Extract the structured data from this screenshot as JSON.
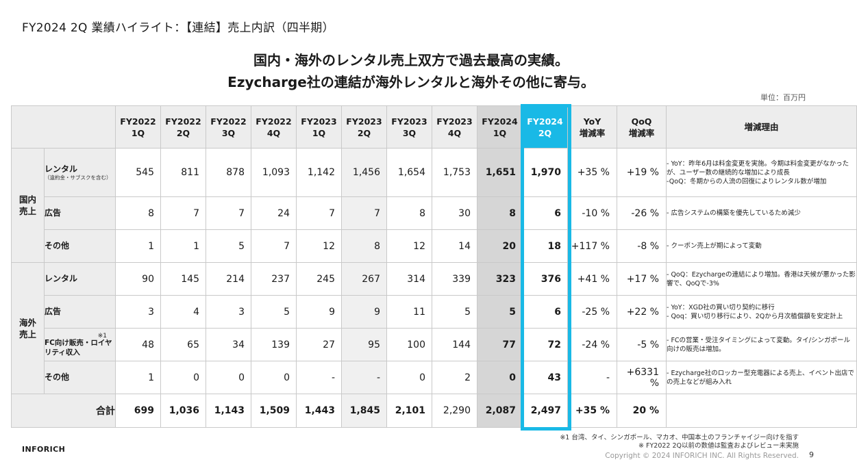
{
  "slide": {
    "title": "FY2024 2Q 業績ハイライト：【連結】売上内訳（四半期）",
    "headline_line1": "国内・海外のレンタル売上双方で過去最高の実績。",
    "headline_line2": "Ezycharge社の連結が海外レンタルと海外その他に寄与。",
    "unit": "単位：百万円"
  },
  "table": {
    "columns": [
      {
        "line1": "FY2022",
        "line2": "1Q"
      },
      {
        "line1": "FY2022",
        "line2": "2Q"
      },
      {
        "line1": "FY2022",
        "line2": "3Q"
      },
      {
        "line1": "FY2022",
        "line2": "4Q"
      },
      {
        "line1": "FY2023",
        "line2": "1Q"
      },
      {
        "line1": "FY2023",
        "line2": "2Q"
      },
      {
        "line1": "FY2023",
        "line2": "3Q"
      },
      {
        "line1": "FY2023",
        "line2": "4Q"
      },
      {
        "line1": "FY2024",
        "line2": "1Q"
      },
      {
        "line1": "FY2024",
        "line2": "2Q"
      },
      {
        "line1": "YoY",
        "line2": "増減率"
      },
      {
        "line1": "QoQ",
        "line2": "増減率"
      },
      {
        "line1": "増減理由",
        "line2": ""
      }
    ],
    "groups": {
      "domestic": {
        "line1": "国内",
        "line2": "売上"
      },
      "overseas": {
        "line1": "海外",
        "line2": "売上"
      }
    },
    "rows": [
      {
        "category": "レンタル",
        "sub": "（違約金・サブスクを含む）",
        "note": "",
        "values": [
          "545",
          "811",
          "878",
          "1,093",
          "1,142",
          "1,456",
          "1,654",
          "1,753",
          "1,651",
          "1,970"
        ],
        "yoy": "+35 %",
        "qoq": "+19 %",
        "reason": [
          "- YoY：昨年6月は料金変更を実施。今期は料金変更がなかったが、ユーザー数の継続的な増加により成長",
          "-QoQ：冬期からの人流の回復によりレンタル数が増加"
        ]
      },
      {
        "category": "広告",
        "sub": "",
        "note": "",
        "values": [
          "8",
          "7",
          "7",
          "24",
          "7",
          "7",
          "8",
          "30",
          "8",
          "6"
        ],
        "yoy": "-10 %",
        "qoq": "-26 %",
        "reason": [
          "- 広告システムの構築を優先しているため減少"
        ]
      },
      {
        "category": "その他",
        "sub": "",
        "note": "",
        "values": [
          "1",
          "1",
          "5",
          "7",
          "12",
          "8",
          "12",
          "14",
          "20",
          "18"
        ],
        "yoy": "+117 %",
        "qoq": "-8 %",
        "reason": [
          "- クーポン売上が期によって変動"
        ]
      },
      {
        "category": "レンタル",
        "sub": "",
        "note": "",
        "values": [
          "90",
          "145",
          "214",
          "237",
          "245",
          "267",
          "314",
          "339",
          "323",
          "376"
        ],
        "yoy": "+41 %",
        "qoq": "+17 %",
        "reason": [
          "- QoQ：Ezychargeの連結により増加。香港は天候が悪かった影響で、QoQで-3%"
        ]
      },
      {
        "category": "広告",
        "sub": "",
        "note": "",
        "values": [
          "3",
          "4",
          "3",
          "5",
          "9",
          "9",
          "11",
          "5",
          "5",
          "6"
        ],
        "yoy": "-25 %",
        "qoq": "+22 %",
        "reason": [
          "- YoY：XGD社の買い切り契約に移行",
          "- Qoq：買い切り移行により、2Qから月次植償額を安定計上"
        ]
      },
      {
        "category": "FC向け販売・ロイヤリティ収入",
        "sub": "",
        "note": "※1",
        "values": [
          "48",
          "65",
          "34",
          "139",
          "27",
          "95",
          "100",
          "144",
          "77",
          "72"
        ],
        "yoy": "-24 %",
        "qoq": "-5 %",
        "reason": [
          "- FCの営業・受注タイミングによって変動。タイ/シンガポール向けの販売は増加。"
        ]
      },
      {
        "category": "その他",
        "sub": "",
        "note": "",
        "values": [
          "1",
          "0",
          "0",
          "0",
          "-",
          "-",
          "0",
          "2",
          "0",
          "43"
        ],
        "yoy": "-",
        "qoq": "+6331 %",
        "reason": [
          "- Ezycharge社のロッカー型充電器による売上、イベント出店での売上などが組み入れ"
        ]
      }
    ],
    "total": {
      "label": "合計",
      "values": [
        "699",
        "1,036",
        "1,143",
        "1,509",
        "1,443",
        "1,845",
        "2,101",
        "2,290",
        "2,087",
        "2,497"
      ],
      "yoy": "+35 %",
      "qoq": "20 %"
    }
  },
  "footer": {
    "footnote1": "※1 台湾、タイ、シンガポール、マカオ、中国本土のフランチャイジー向けを指す",
    "footnote2": "※ FY2022 2Q以前の数値は監査およびレビュー未実施",
    "brand": "INFORICH",
    "copyright": "Copyright © 2024 INFORICH INC. All Rights Reserved.",
    "page": "9"
  },
  "colors": {
    "highlight": "#19b9e6",
    "header_gray": "#ededed",
    "fy2024_1q_gray": "#d6d6d6"
  }
}
